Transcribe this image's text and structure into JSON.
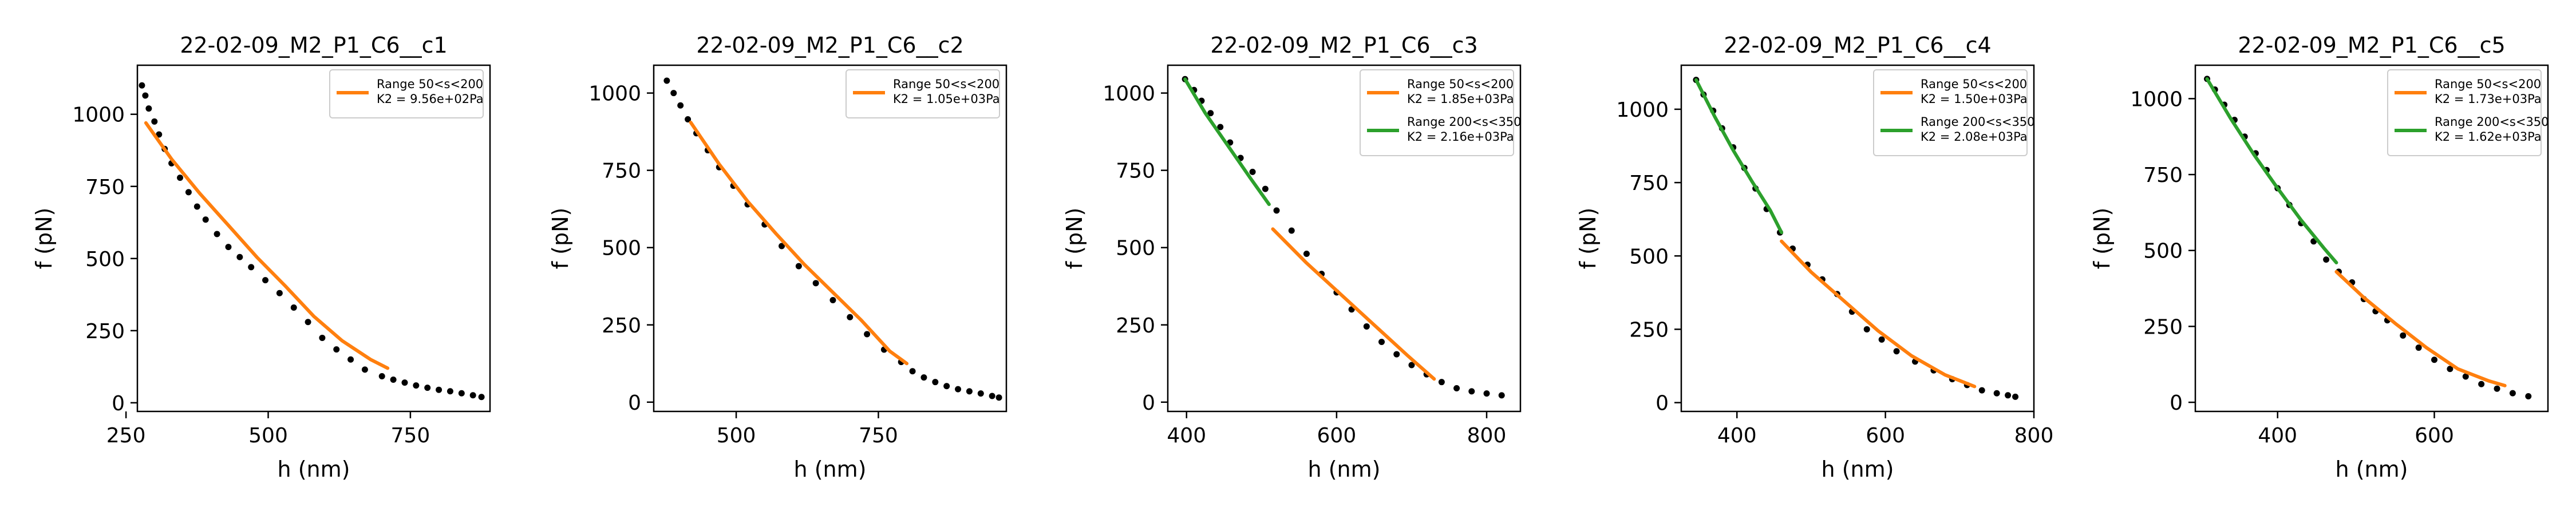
{
  "chart_data": [
    {
      "type": "scatter",
      "title": "22-02-09_M2_P1_C6__c1",
      "xlabel": "h (nm)",
      "ylabel": "f (pN)",
      "xlim": [
        270,
        890
      ],
      "ylim": [
        -30,
        1170
      ],
      "xticks": [
        250,
        500,
        750
      ],
      "yticks": [
        0,
        250,
        500,
        750,
        1000
      ],
      "legend_position": "top-right",
      "grid": false,
      "scatter": {
        "color": "#000000",
        "x": [
          278,
          284,
          290,
          300,
          308,
          318,
          330,
          345,
          360,
          375,
          390,
          410,
          430,
          450,
          470,
          495,
          520,
          545,
          570,
          595,
          620,
          645,
          670,
          700,
          720,
          740,
          760,
          780,
          800,
          820,
          840,
          860,
          875
        ],
        "y": [
          1100,
          1065,
          1020,
          975,
          930,
          880,
          830,
          780,
          730,
          680,
          635,
          585,
          540,
          505,
          470,
          425,
          380,
          330,
          280,
          225,
          185,
          150,
          115,
          92,
          80,
          70,
          60,
          52,
          45,
          40,
          33,
          26,
          20
        ]
      },
      "series": [
        {
          "name": "Range 50<s<200",
          "legend_line2": "K2 = 9.56e+02Pa",
          "color": "#ff7f0e",
          "x": [
            285,
            330,
            380,
            430,
            480,
            530,
            580,
            630,
            680,
            710
          ],
          "y": [
            970,
            845,
            725,
            615,
            505,
            405,
            300,
            215,
            150,
            120
          ]
        }
      ]
    },
    {
      "type": "scatter",
      "title": "22-02-09_M2_P1_C6__c2",
      "xlabel": "h (nm)",
      "ylabel": "f (pN)",
      "xlim": [
        355,
        975
      ],
      "ylim": [
        -30,
        1090
      ],
      "xticks": [
        500,
        750
      ],
      "yticks": [
        0,
        250,
        500,
        750,
        1000
      ],
      "legend_position": "top-right",
      "grid": false,
      "scatter": {
        "color": "#000000",
        "x": [
          378,
          390,
          402,
          415,
          430,
          450,
          470,
          495,
          520,
          550,
          580,
          610,
          640,
          670,
          700,
          730,
          760,
          790,
          810,
          830,
          850,
          870,
          890,
          910,
          930,
          950,
          962
        ],
        "y": [
          1040,
          1000,
          960,
          915,
          870,
          815,
          760,
          700,
          640,
          575,
          505,
          440,
          385,
          330,
          275,
          220,
          170,
          130,
          100,
          80,
          65,
          52,
          42,
          35,
          28,
          20,
          15
        ]
      },
      "series": [
        {
          "name": "Range 50<s<200",
          "legend_line2": "K2 = 1.05e+03Pa",
          "color": "#ff7f0e",
          "x": [
            420,
            470,
            520,
            570,
            620,
            670,
            720,
            770,
            800
          ],
          "y": [
            905,
            770,
            650,
            545,
            445,
            355,
            265,
            165,
            125
          ]
        }
      ]
    },
    {
      "type": "scatter",
      "title": "22-02-09_M2_P1_C6__c3",
      "xlabel": "h (nm)",
      "ylabel": "f (pN)",
      "xlim": [
        375,
        845
      ],
      "ylim": [
        -30,
        1090
      ],
      "xticks": [
        400,
        600,
        800
      ],
      "yticks": [
        0,
        250,
        500,
        750,
        1000
      ],
      "legend_position": "top-right",
      "grid": false,
      "scatter": {
        "color": "#000000",
        "x": [
          398,
          410,
          420,
          432,
          445,
          458,
          472,
          488,
          505,
          520,
          540,
          560,
          580,
          600,
          620,
          640,
          660,
          680,
          700,
          720,
          740,
          760,
          780,
          800,
          820
        ],
        "y": [
          1045,
          1010,
          975,
          935,
          890,
          840,
          790,
          745,
          690,
          620,
          555,
          480,
          415,
          355,
          300,
          245,
          195,
          155,
          120,
          90,
          65,
          45,
          35,
          28,
          22
        ]
      },
      "series": [
        {
          "name": "Range 50<s<200",
          "legend_line2": "K2 = 1.85e+03Pa",
          "color": "#ff7f0e",
          "x": [
            515,
            560,
            605,
            650,
            695,
            730
          ],
          "y": [
            560,
            450,
            350,
            250,
            150,
            75
          ]
        },
        {
          "name": "Range 200<s<350",
          "legend_line2": "K2 = 2.16e+03Pa",
          "color": "#2ca02c",
          "x": [
            398,
            425,
            455,
            485,
            510
          ],
          "y": [
            1045,
            935,
            830,
            725,
            640
          ]
        }
      ]
    },
    {
      "type": "scatter",
      "title": "22-02-09_M2_P1_C6__c4",
      "xlabel": "h (nm)",
      "ylabel": "f (pN)",
      "xlim": [
        325,
        800
      ],
      "ylim": [
        -30,
        1150
      ],
      "xticks": [
        400,
        600,
        800
      ],
      "yticks": [
        0,
        250,
        500,
        750,
        1000
      ],
      "legend_position": "top-right",
      "grid": false,
      "scatter": {
        "color": "#000000",
        "x": [
          345,
          355,
          368,
          380,
          395,
          410,
          425,
          440,
          458,
          475,
          495,
          515,
          535,
          555,
          575,
          595,
          615,
          640,
          665,
          690,
          710,
          730,
          750,
          765,
          775
        ],
        "y": [
          1100,
          1050,
          995,
          935,
          870,
          800,
          730,
          660,
          580,
          525,
          470,
          420,
          370,
          310,
          250,
          215,
          175,
          140,
          110,
          80,
          60,
          42,
          32,
          25,
          20
        ]
      },
      "series": [
        {
          "name": "Range 50<s<200",
          "legend_line2": "K2 = 1.50e+03Pa",
          "color": "#ff7f0e",
          "x": [
            460,
            500,
            545,
            590,
            635,
            680,
            720
          ],
          "y": [
            550,
            445,
            345,
            245,
            160,
            95,
            55
          ]
        },
        {
          "name": "Range 200<s<350",
          "legend_line2": "K2 = 2.08e+03Pa",
          "color": "#2ca02c",
          "x": [
            345,
            370,
            395,
            420,
            445,
            460
          ],
          "y": [
            1100,
            975,
            860,
            755,
            655,
            580
          ]
        }
      ]
    },
    {
      "type": "scatter",
      "title": "22-02-09_M2_P1_C6__c5",
      "xlabel": "h (nm)",
      "ylabel": "f (pN)",
      "xlim": [
        295,
        745
      ],
      "ylim": [
        -30,
        1110
      ],
      "xticks": [
        400,
        600
      ],
      "yticks": [
        0,
        250,
        500,
        750,
        1000
      ],
      "legend_position": "top-right",
      "grid": false,
      "scatter": {
        "color": "#000000",
        "x": [
          310,
          320,
          332,
          345,
          358,
          372,
          386,
          400,
          415,
          430,
          446,
          462,
          478,
          495,
          510,
          525,
          540,
          560,
          580,
          600,
          620,
          640,
          660,
          680,
          700,
          720
        ],
        "y": [
          1065,
          1030,
          980,
          930,
          875,
          820,
          765,
          705,
          650,
          590,
          530,
          470,
          430,
          395,
          340,
          300,
          270,
          220,
          180,
          140,
          110,
          85,
          60,
          45,
          30,
          20
        ]
      },
      "series": [
        {
          "name": "Range 50<s<200",
          "legend_line2": "K2 = 1.73e+03Pa",
          "color": "#ff7f0e",
          "x": [
            475,
            510,
            550,
            590,
            630,
            670,
            690
          ],
          "y": [
            430,
            345,
            260,
            180,
            110,
            70,
            55
          ]
        },
        {
          "name": "Range 200<s<350",
          "legend_line2": "K2 = 1.62e+03Pa",
          "color": "#2ca02c",
          "x": [
            310,
            340,
            370,
            400,
            430,
            460,
            475
          ],
          "y": [
            1065,
            935,
            815,
            705,
            600,
            505,
            460
          ]
        }
      ]
    }
  ]
}
